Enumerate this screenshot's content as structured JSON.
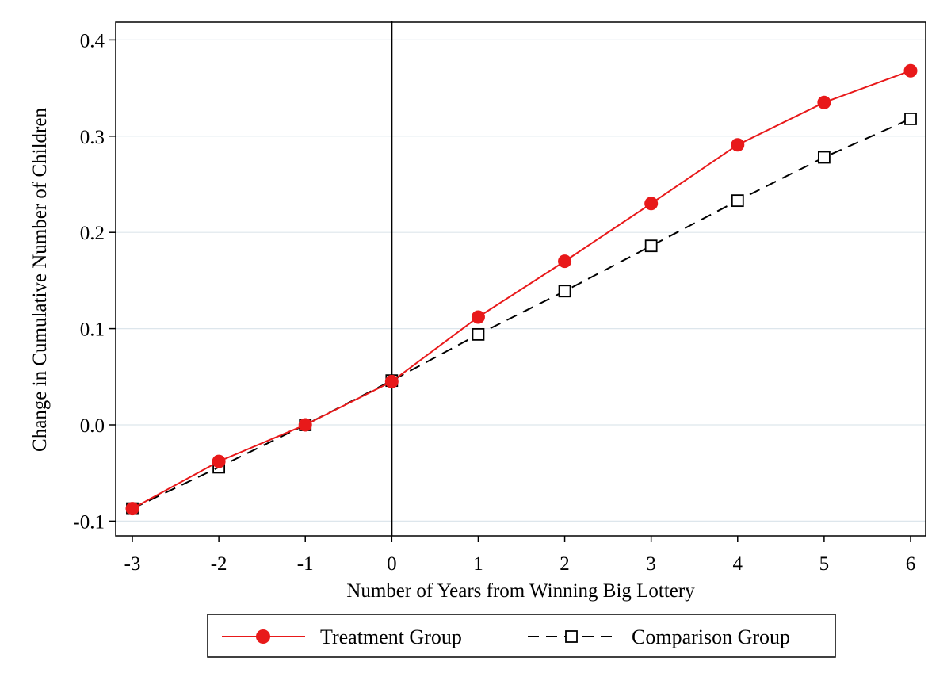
{
  "chart_data": {
    "type": "line",
    "xlabel": "Number of Years from Winning Big Lottery",
    "ylabel": "Change in Cumulative Number of Children",
    "x": [
      -3,
      -2,
      -1,
      0,
      1,
      2,
      3,
      4,
      5,
      6
    ],
    "xlim": [
      -3,
      6
    ],
    "ylim": [
      -0.1,
      0.4
    ],
    "xticks": [
      "-3",
      "-2",
      "-1",
      "0",
      "1",
      "2",
      "3",
      "4",
      "5",
      "6"
    ],
    "yticks": [
      "-0.1",
      "0.0",
      "0.1",
      "0.2",
      "0.3",
      "0.4"
    ],
    "ytick_values": [
      -0.1,
      0.0,
      0.1,
      0.2,
      0.3,
      0.4
    ],
    "grid": "horizontal",
    "reference_line_x": 0,
    "legend_position": "bottom",
    "series": [
      {
        "name": "Treatment Group",
        "values": [
          -0.087,
          -0.038,
          0.0,
          0.045,
          0.112,
          0.17,
          0.23,
          0.291,
          0.335,
          0.368
        ],
        "color": "#e8191a",
        "marker": "filled-circle",
        "line": "solid"
      },
      {
        "name": "Comparison Group",
        "values": [
          -0.087,
          -0.044,
          0.0,
          0.046,
          0.094,
          0.139,
          0.186,
          0.233,
          0.278,
          0.318
        ],
        "color": "#000000",
        "marker": "hollow-square",
        "line": "dashed"
      }
    ]
  }
}
